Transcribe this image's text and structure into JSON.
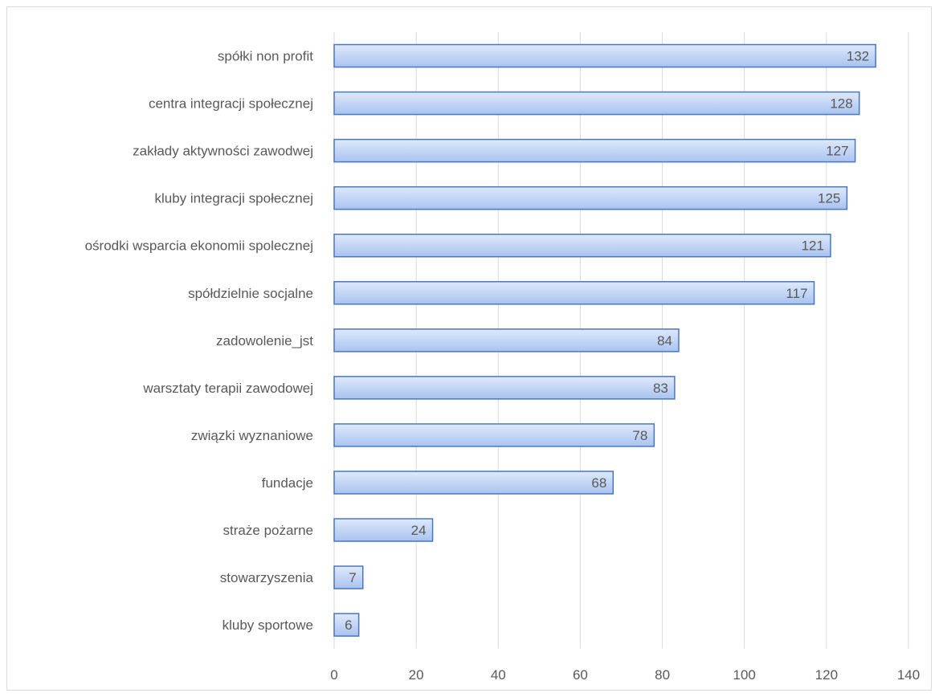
{
  "chart_data": {
    "type": "bar",
    "orientation": "horizontal",
    "categories": [
      "spółki non profit",
      "centra integracji społecznej",
      "zakłady aktywności zawodwej",
      "kluby integracji społecznej",
      "ośrodki wsparcia ekonomii spolecznej",
      "spółdzielnie socjalne",
      "zadowolenie_jst",
      "warsztaty terapii zawodowej",
      "związki wyznaniowe",
      "fundacje",
      "straże pożarne",
      "stowarzyszenia",
      "kluby sportowe"
    ],
    "values": [
      132,
      128,
      127,
      125,
      121,
      117,
      84,
      83,
      78,
      68,
      24,
      7,
      6
    ],
    "value_labels": [
      "132",
      "128",
      "127",
      "125",
      "121",
      "117",
      "84",
      "83",
      "78",
      "68",
      "24",
      "7",
      "6"
    ],
    "xlim": [
      0,
      140
    ],
    "xticks": [
      0,
      20,
      40,
      60,
      80,
      100,
      120,
      140
    ],
    "xtick_labels": [
      "0",
      "20",
      "40",
      "60",
      "80",
      "100",
      "120",
      "140"
    ],
    "grid": true,
    "legend": "none",
    "colors": {
      "bar_fill_light": "#dfe9fb",
      "bar_fill_dark": "#a9c3ef",
      "bar_stroke": "#4a76c0",
      "grid": "#d9d9d9",
      "text": "#595959"
    }
  }
}
